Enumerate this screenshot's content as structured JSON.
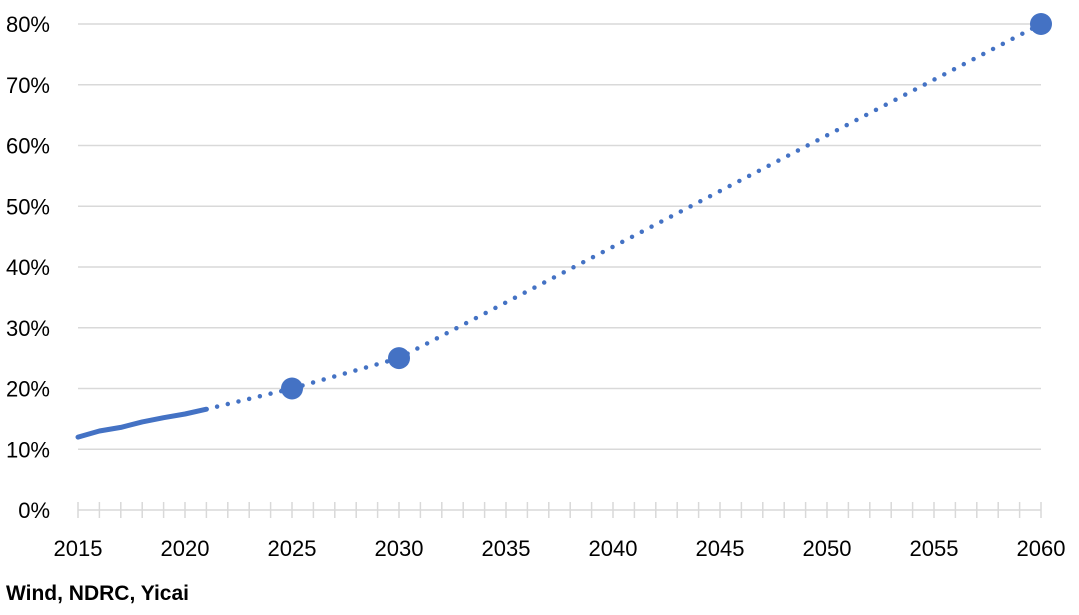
{
  "chart_data": {
    "type": "line",
    "title": "",
    "xlabel": "",
    "ylabel": "",
    "xlim": [
      2015,
      2060
    ],
    "ylim": [
      0,
      80
    ],
    "grid": true,
    "x_ticks": [
      "2015",
      "2020",
      "2025",
      "2030",
      "2035",
      "2040",
      "2045",
      "2050",
      "2055",
      "2060"
    ],
    "y_ticks": [
      "0%",
      "10%",
      "20%",
      "30%",
      "40%",
      "50%",
      "60%",
      "70%",
      "80%"
    ],
    "series": [
      {
        "style": "solid",
        "x": [
          2015,
          2016,
          2017,
          2018,
          2019,
          2020,
          2021
        ],
        "y": [
          12.0,
          13.0,
          13.6,
          14.5,
          15.2,
          15.8,
          16.6
        ]
      },
      {
        "style": "dotted",
        "x": [
          2021,
          2025,
          2030,
          2060
        ],
        "y": [
          16.6,
          20,
          25,
          80
        ]
      }
    ],
    "markers": {
      "x": [
        2025,
        2030,
        2060
      ],
      "y": [
        20,
        25,
        80
      ]
    },
    "line_color": "#4472C4",
    "grid_color": "#D9D9D9"
  },
  "source": "Wind, NDRC, Yicai"
}
